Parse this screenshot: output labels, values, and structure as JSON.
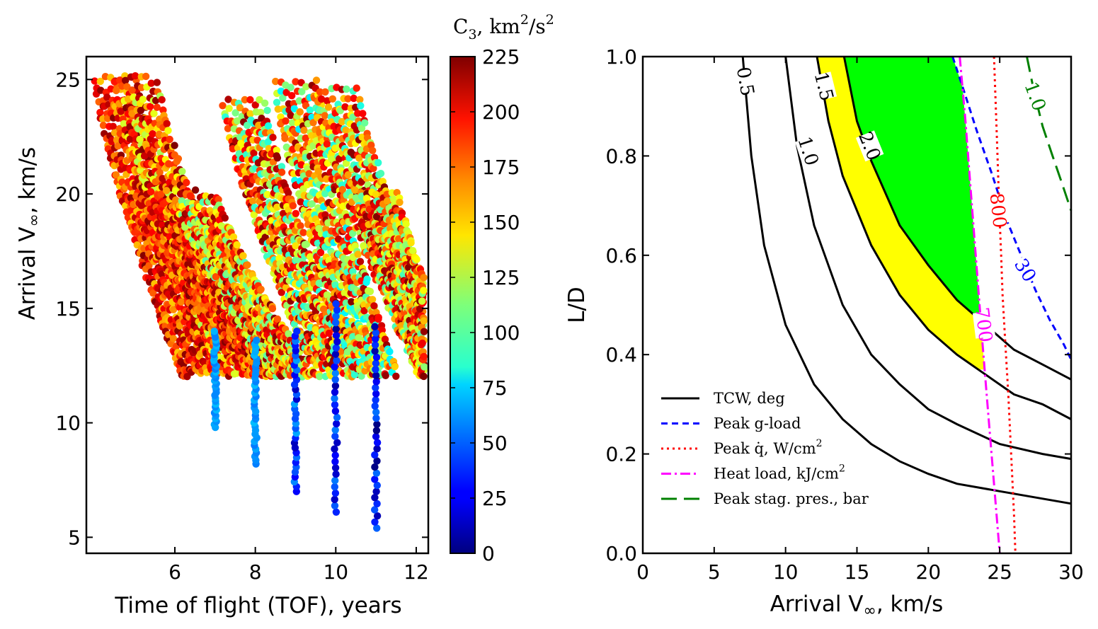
{
  "chart_data": [
    {
      "type": "scatter",
      "title": "",
      "xlabel": "Time of flight (TOF), years",
      "ylabel_prefix": "Arrival V",
      "ylabel_suffix": ", km/s",
      "xlim": [
        3.8,
        12.3
      ],
      "ylim": [
        4.3,
        26.0
      ],
      "xticks": [
        6,
        8,
        10,
        12
      ],
      "yticks": [
        5,
        10,
        15,
        20,
        25
      ],
      "colorbar": {
        "label": "C",
        "label_sub": "3",
        "label_unit": ", km",
        "label_unit_sup": "2",
        "label_unit_mid": "/s",
        "label_unit_sup2": "2",
        "range": [
          0,
          225
        ],
        "ticks": [
          0,
          25,
          50,
          75,
          100,
          125,
          150,
          175,
          200,
          225
        ],
        "colormap": "jet"
      },
      "point_families": [
        {
          "x_start": 4.0,
          "x_end": 6.2,
          "y_start": 25.0,
          "y_end": 12.0,
          "c_range": [
            150,
            225
          ]
        },
        {
          "x_start": 4.5,
          "x_end": 7.2,
          "y_start": 25.0,
          "y_end": 12.0,
          "c_range": [
            120,
            225
          ]
        },
        {
          "x_start": 4.9,
          "x_end": 7.8,
          "y_start": 20.0,
          "y_end": 12.0,
          "c_range": [
            150,
            225
          ]
        },
        {
          "x_start": 6.0,
          "x_end": 8.4,
          "y_start": 20.0,
          "y_end": 12.0,
          "c_range": [
            100,
            225
          ]
        },
        {
          "x_start": 7.2,
          "x_end": 9.5,
          "y_start": 24.0,
          "y_end": 12.0,
          "c_range": [
            90,
            225
          ]
        },
        {
          "x_start": 8.5,
          "x_end": 10.5,
          "y_start": 24.8,
          "y_end": 12.0,
          "c_range": [
            80,
            225
          ]
        },
        {
          "x_start": 9.5,
          "x_end": 12.1,
          "y_start": 24.5,
          "y_end": 12.0,
          "c_range": [
            90,
            225
          ]
        },
        {
          "x_start": 10.5,
          "x_end": 12.2,
          "y_start": 20.0,
          "y_end": 12.0,
          "c_range": [
            100,
            225
          ]
        }
      ],
      "vertical_columns": [
        {
          "x": 7,
          "y_min": 9.8,
          "y_max": 14.0,
          "c_range": [
            55,
            70
          ]
        },
        {
          "x": 8,
          "y_min": 8.2,
          "y_max": 13.6,
          "c_range": [
            55,
            70
          ]
        },
        {
          "x": 9,
          "y_min": 7.0,
          "y_max": 14.0,
          "c_range": [
            10,
            65
          ]
        },
        {
          "x": 10,
          "y_min": 6.1,
          "y_max": 15.2,
          "c_range": [
            5,
            60
          ]
        },
        {
          "x": 11,
          "y_min": 5.4,
          "y_max": 14.2,
          "c_range": [
            0,
            55
          ]
        }
      ]
    },
    {
      "type": "line",
      "title": "",
      "xlabel_prefix": "Arrival V",
      "xlabel_suffix": ", km/s",
      "ylabel": "L/D",
      "xlim": [
        0,
        30
      ],
      "ylim": [
        0,
        1
      ],
      "xticks": [
        0,
        5,
        10,
        15,
        20,
        25,
        30
      ],
      "yticks": [
        0.0,
        0.2,
        0.4,
        0.6,
        0.8,
        1.0
      ],
      "xtick_labels": [
        "0",
        "5",
        "10",
        "15",
        "20",
        "25",
        "30"
      ],
      "ytick_labels": [
        "0.0",
        "0.2",
        "0.4",
        "0.6",
        "0.8",
        "1.0"
      ],
      "series": [
        {
          "name": "TCW, deg",
          "style": "solid",
          "color": "#000000",
          "level": "0.5",
          "x": [
            7.0,
            7.6,
            8.5,
            10,
            12,
            14,
            16,
            18,
            20,
            22,
            25,
            28,
            30
          ],
          "y": [
            1.0,
            0.8,
            0.62,
            0.46,
            0.34,
            0.27,
            0.22,
            0.185,
            0.16,
            0.14,
            0.125,
            0.11,
            0.1
          ]
        },
        {
          "name": "",
          "style": "solid",
          "color": "#000000",
          "level": "1.0",
          "x": [
            10.0,
            10.8,
            12,
            14,
            16,
            18,
            20,
            22,
            25,
            28,
            30
          ],
          "y": [
            1.0,
            0.82,
            0.66,
            0.5,
            0.4,
            0.34,
            0.29,
            0.26,
            0.22,
            0.2,
            0.19
          ]
        },
        {
          "name": "",
          "style": "solid",
          "color": "#000000",
          "level": "1.5",
          "x": [
            12.2,
            13,
            14,
            16,
            18,
            20,
            22,
            24,
            26,
            28,
            30
          ],
          "y": [
            1.0,
            0.87,
            0.76,
            0.62,
            0.52,
            0.45,
            0.4,
            0.36,
            0.32,
            0.3,
            0.27
          ]
        },
        {
          "name": "",
          "style": "solid",
          "color": "#000000",
          "level": "2.0",
          "x": [
            14.1,
            15,
            16,
            18,
            20,
            22,
            24,
            26,
            28,
            30
          ],
          "y": [
            1.0,
            0.87,
            0.79,
            0.66,
            0.58,
            0.51,
            0.46,
            0.41,
            0.38,
            0.35
          ]
        },
        {
          "name": "Peak g-load",
          "style": "dashed",
          "color": "#0000ff",
          "level": "30",
          "x": [
            21.7,
            22.5,
            23.4,
            24.5,
            25.5,
            26.5,
            27.5,
            28.5,
            29.5,
            30
          ],
          "y": [
            1.0,
            0.93,
            0.85,
            0.76,
            0.67,
            0.6,
            0.53,
            0.47,
            0.42,
            0.39
          ]
        },
        {
          "name": "Peak q̇, W/cm",
          "name_sup": "2",
          "style": "dotted",
          "color": "#ff0000",
          "level": "800",
          "x": [
            24.6,
            24.7,
            24.8,
            24.9,
            25.0,
            25.1,
            25.2,
            25.4,
            25.6,
            25.8,
            26.0,
            26.1
          ],
          "y": [
            1.0,
            0.92,
            0.84,
            0.75,
            0.67,
            0.6,
            0.52,
            0.42,
            0.32,
            0.2,
            0.08,
            0.0
          ]
        },
        {
          "name": "Heat load, kJ/cm",
          "name_sup": "2",
          "style": "dashdot",
          "color": "#ff00ff",
          "level": "700",
          "x": [
            22.2,
            22.6,
            23.0,
            23.4,
            23.8,
            24.2,
            24.6,
            25.0
          ],
          "y": [
            1.0,
            0.87,
            0.72,
            0.57,
            0.42,
            0.28,
            0.14,
            0.0
          ]
        },
        {
          "name": "Peak stag. pres., bar",
          "style": "longdash",
          "color": "#008000",
          "level": "1.0",
          "x": [
            26.9,
            27.4,
            28.0,
            28.7,
            29.3,
            30.0
          ],
          "y": [
            1.0,
            0.93,
            0.86,
            0.8,
            0.75,
            0.69
          ]
        }
      ],
      "contour_labels": [
        {
          "text": "0.5",
          "color": "#000000",
          "x": 7.2,
          "y": 0.95,
          "angle": 80
        },
        {
          "text": "1.0",
          "color": "#000000",
          "x": 11.6,
          "y": 0.81,
          "angle": 72
        },
        {
          "text": "1.5",
          "color": "#000000",
          "x": 12.7,
          "y": 0.94,
          "angle": 76
        },
        {
          "text": "2.0",
          "color": "#000000",
          "x": 15.9,
          "y": 0.82,
          "angle": 68
        },
        {
          "text": "800",
          "color": "#ff0000",
          "x": 24.9,
          "y": 0.69,
          "angle": 84
        },
        {
          "text": "30",
          "color": "#0000ff",
          "x": 26.8,
          "y": 0.57,
          "angle": 58
        },
        {
          "text": "700",
          "color": "#ff00ff",
          "x": 23.9,
          "y": 0.46,
          "angle": 83
        },
        {
          "text": "1.0",
          "color": "#008000",
          "x": 27.5,
          "y": 0.92,
          "angle": 70
        }
      ],
      "regions": [
        {
          "name": "feasible-corridor",
          "color": "#ffff00"
        },
        {
          "name": "optimal-corridor",
          "color": "#00ff00"
        }
      ],
      "legend_position": "lower-left"
    }
  ]
}
